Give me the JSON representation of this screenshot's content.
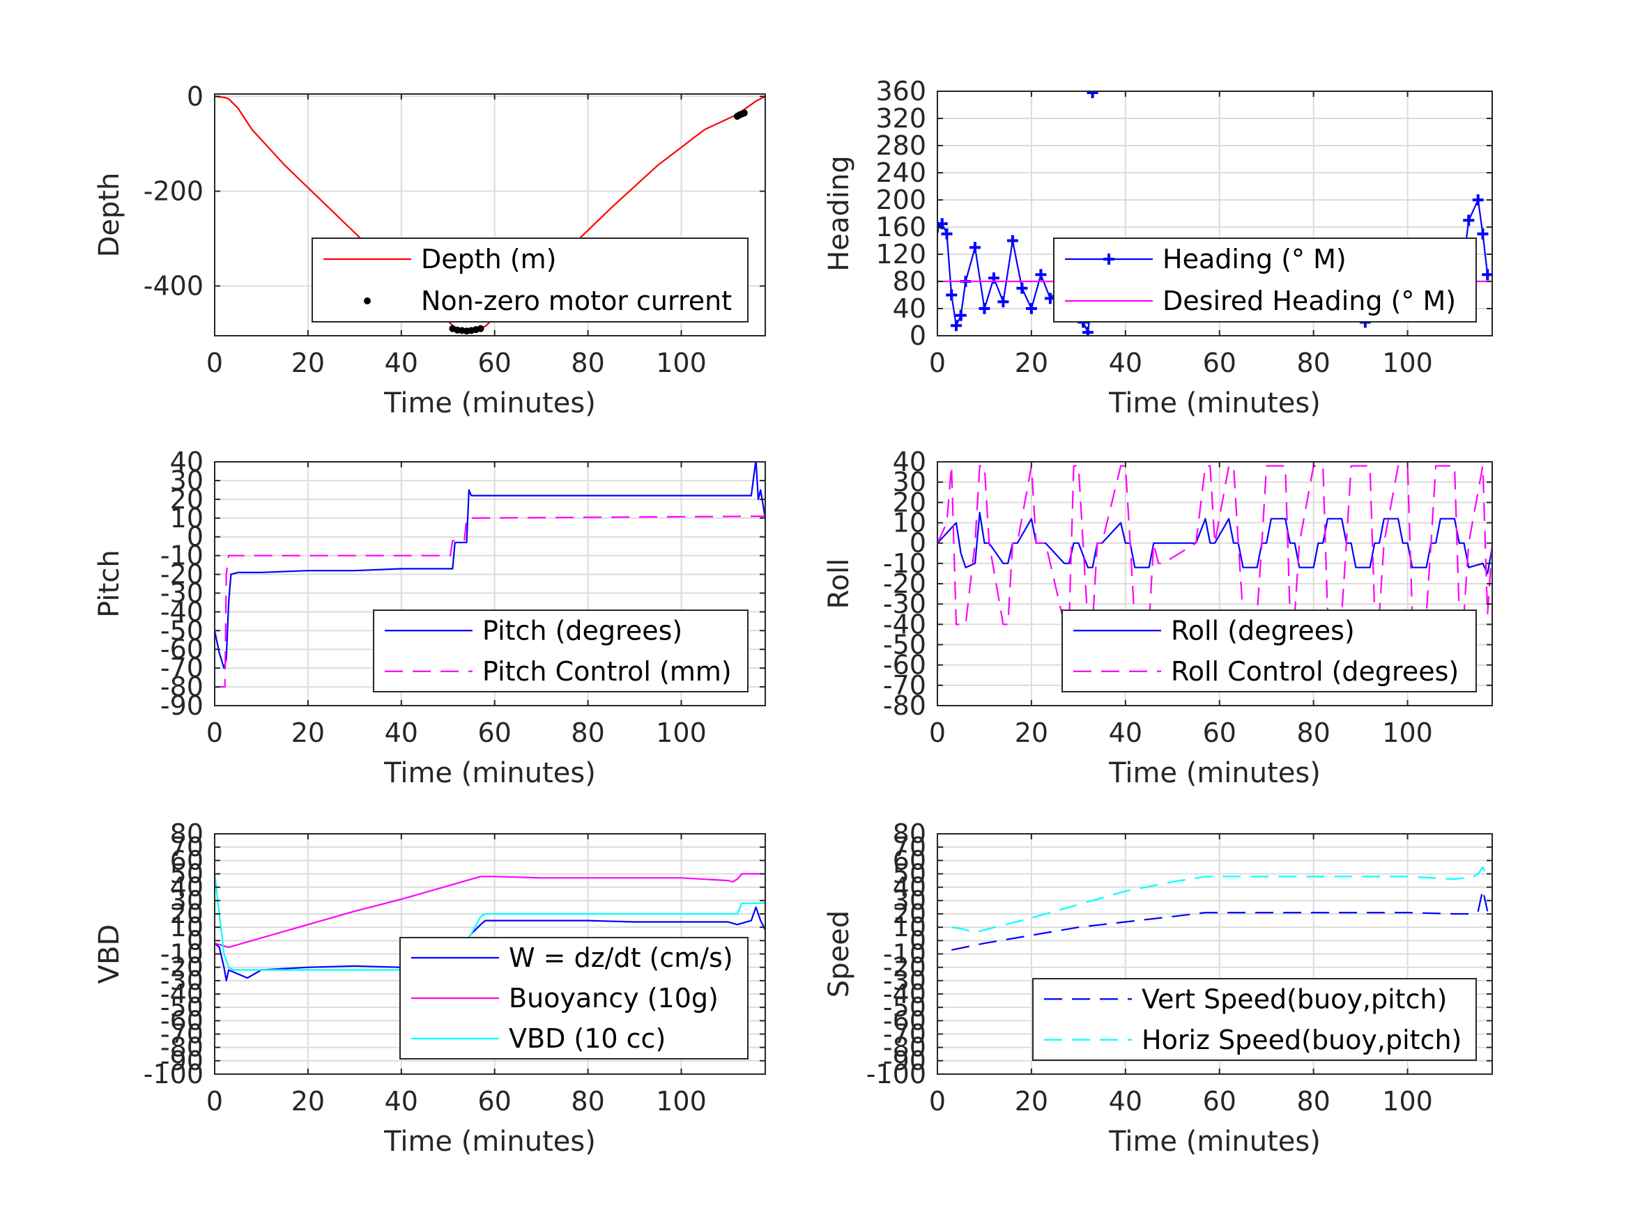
{
  "chart_data": [
    {
      "id": "depth",
      "type": "line",
      "xlabel": "Time (minutes)",
      "ylabel": "Depth",
      "xlim": [
        0,
        118
      ],
      "ylim": [
        -505,
        5
      ],
      "xticks": [
        0,
        20,
        40,
        60,
        80,
        100
      ],
      "yticks": [
        -400,
        -200,
        0
      ],
      "grid": true,
      "legend_placement": "lower-right",
      "series": [
        {
          "name": "Depth (m)",
          "color": "#ff0000",
          "style": "solid",
          "marker": "none",
          "x": [
            0,
            2,
            3,
            5,
            8,
            15,
            25,
            35,
            45,
            52,
            55,
            58,
            65,
            75,
            85,
            95,
            105,
            112,
            116,
            118
          ],
          "y": [
            0,
            -2,
            -5,
            -25,
            -70,
            -145,
            -240,
            -335,
            -430,
            -492,
            -496,
            -485,
            -420,
            -330,
            -235,
            -145,
            -70,
            -38,
            -10,
            0
          ]
        },
        {
          "name": "Non-zero motor current",
          "color": "#000000",
          "style": "none",
          "marker": "dot",
          "x": [
            51,
            52,
            53,
            54,
            55,
            56,
            57,
            112,
            112.5,
            113,
            113.5
          ],
          "y": [
            -490,
            -493,
            -494,
            -495,
            -494,
            -492,
            -490,
            -42,
            -39,
            -37,
            -35
          ]
        }
      ]
    },
    {
      "id": "heading",
      "type": "scatter",
      "xlabel": "Time (minutes)",
      "ylabel": "Heading",
      "xlim": [
        0,
        118
      ],
      "ylim": [
        0,
        360
      ],
      "xticks": [
        0,
        20,
        40,
        60,
        80,
        100
      ],
      "yticks": [
        0,
        40,
        80,
        120,
        160,
        200,
        240,
        280,
        320,
        360
      ],
      "grid": true,
      "legend_placement": "center-right",
      "series": [
        {
          "name": "Heading (° M)",
          "color": "#0000ff",
          "style": "solid",
          "marker": "plus",
          "x": [
            0,
            1,
            2,
            3,
            4,
            5,
            6,
            8,
            10,
            12,
            14,
            16,
            18,
            20,
            22,
            24,
            26,
            28,
            30,
            31,
            32,
            33,
            35,
            37,
            39,
            41,
            43,
            45,
            47,
            49,
            51,
            53,
            55,
            57,
            59,
            61,
            63,
            65,
            67,
            69,
            71,
            73,
            75,
            77,
            79,
            81,
            83,
            85,
            87,
            89,
            91,
            93,
            95,
            97,
            99,
            101,
            103,
            105,
            107,
            109,
            111,
            113,
            115,
            116,
            117
          ],
          "y": [
            160,
            165,
            150,
            60,
            15,
            30,
            80,
            130,
            40,
            85,
            50,
            140,
            70,
            40,
            90,
            55,
            70,
            105,
            40,
            20,
            5,
            60,
            100,
            40,
            30,
            100,
            90,
            40,
            30,
            85,
            105,
            75,
            115,
            70,
            110,
            60,
            100,
            90,
            40,
            60,
            120,
            30,
            100,
            75,
            40,
            110,
            75,
            40,
            110,
            60,
            20,
            125,
            40,
            130,
            30,
            120,
            50,
            135,
            40,
            115,
            60,
            170,
            200,
            150,
            90
          ]
        },
        {
          "name": "Desired Heading (° M)",
          "color": "#ff00ff",
          "style": "solid",
          "marker": "none",
          "x": [
            0,
            118
          ],
          "y": [
            80,
            80
          ]
        },
        {
          "name": "",
          "color": "#0000ff",
          "style": "none",
          "marker": "plus",
          "x": [
            33
          ],
          "y": [
            358
          ]
        }
      ]
    },
    {
      "id": "pitch",
      "type": "line",
      "xlabel": "Time (minutes)",
      "ylabel": "Pitch",
      "xlim": [
        0,
        118
      ],
      "ylim": [
        -90,
        40
      ],
      "xticks": [
        0,
        20,
        40,
        60,
        80,
        100
      ],
      "yticks": [
        -90,
        -80,
        -70,
        -60,
        -50,
        -40,
        -30,
        -20,
        -10,
        0,
        10,
        20,
        30,
        40
      ],
      "grid": true,
      "legend_placement": "lower-right",
      "series": [
        {
          "name": "Pitch (degrees)",
          "color": "#0000ff",
          "style": "solid",
          "marker": "none",
          "x": [
            0,
            1,
            2,
            2.5,
            3,
            3.5,
            5,
            10,
            20,
            30,
            40,
            50,
            51,
            51.5,
            52,
            54,
            54.5,
            55,
            60,
            70,
            80,
            90,
            100,
            110,
            115,
            116,
            116.5,
            117,
            118
          ],
          "y": [
            -50,
            -62,
            -70,
            -65,
            -35,
            -20,
            -19,
            -19,
            -18,
            -18,
            -17,
            -17,
            -17,
            -3,
            -3,
            -3,
            25,
            22,
            22,
            22,
            22,
            22,
            22,
            22,
            22,
            41,
            20,
            25,
            10
          ]
        },
        {
          "name": "Pitch Control (mm)",
          "color": "#ff00ff",
          "style": "dashed",
          "marker": "none",
          "x": [
            0,
            2.2,
            2.5,
            3,
            50.5,
            51,
            53.5,
            54,
            118
          ],
          "y": [
            -80,
            -80,
            -20,
            -10,
            -10,
            -2,
            -2,
            10,
            11
          ]
        }
      ]
    },
    {
      "id": "roll",
      "type": "line",
      "xlabel": "Time (minutes)",
      "ylabel": "Roll",
      "xlim": [
        0,
        118
      ],
      "ylim": [
        -80,
        40
      ],
      "xticks": [
        0,
        20,
        40,
        60,
        80,
        100
      ],
      "yticks": [
        -80,
        -70,
        -60,
        -50,
        -40,
        -30,
        -20,
        -10,
        0,
        10,
        20,
        30,
        40
      ],
      "grid": true,
      "legend_placement": "lower-right",
      "series": [
        {
          "name": "Roll (degrees)",
          "color": "#0000ff",
          "style": "solid",
          "marker": "none",
          "x": [
            0,
            2,
            4,
            5,
            6,
            8,
            9,
            10,
            11,
            14,
            15,
            16,
            17,
            20,
            21,
            22,
            23,
            27,
            28,
            29,
            30,
            32,
            33,
            34,
            35,
            39,
            40,
            41,
            42,
            45,
            46,
            47,
            48,
            55,
            57,
            58,
            59,
            62,
            63,
            64,
            65,
            68,
            69,
            70,
            71,
            74,
            75,
            76,
            77,
            80,
            81,
            82,
            83,
            86,
            87,
            88,
            89,
            92,
            93,
            94,
            95,
            98,
            99,
            100,
            101,
            104,
            105,
            106,
            107,
            110,
            111,
            112,
            113,
            116,
            117,
            118
          ],
          "y": [
            0,
            5,
            10,
            -5,
            -12,
            -10,
            15,
            0,
            0,
            -10,
            -10,
            0,
            0,
            12,
            0,
            0,
            0,
            -10,
            -10,
            0,
            0,
            -12,
            -12,
            0,
            0,
            10,
            0,
            0,
            -12,
            -12,
            0,
            0,
            0,
            0,
            12,
            0,
            0,
            12,
            0,
            0,
            -12,
            -12,
            0,
            0,
            12,
            12,
            0,
            0,
            -12,
            -12,
            0,
            0,
            12,
            12,
            0,
            0,
            -12,
            -12,
            0,
            0,
            12,
            12,
            0,
            0,
            -12,
            -12,
            0,
            0,
            12,
            12,
            0,
            0,
            -12,
            -10,
            -15,
            -2
          ]
        },
        {
          "name": "Roll Control (degrees)",
          "color": "#ff00ff",
          "style": "dashed",
          "marker": "none",
          "x": [
            0,
            2,
            3,
            4,
            4.5,
            5,
            6,
            8,
            9,
            10,
            11,
            14,
            15,
            16,
            17,
            20,
            21,
            22,
            23,
            27,
            28,
            29,
            30,
            32,
            33,
            34,
            35,
            39,
            40,
            41,
            42,
            45,
            46,
            47,
            48,
            55,
            57,
            58,
            59,
            62,
            63,
            64,
            65,
            68,
            69,
            70,
            71,
            74,
            75,
            76,
            77,
            80,
            81,
            82,
            83,
            86,
            87,
            88,
            89,
            92,
            93,
            94,
            95,
            98,
            99,
            100,
            101,
            104,
            105,
            106,
            107,
            110,
            111,
            112,
            113,
            116,
            117,
            118
          ],
          "y": [
            0,
            10,
            38,
            -40,
            -40,
            -40,
            -40,
            0,
            38,
            38,
            0,
            -40,
            -40,
            0,
            0,
            38,
            0,
            0,
            0,
            -40,
            -40,
            38,
            38,
            -40,
            -40,
            0,
            0,
            38,
            38,
            0,
            -40,
            -40,
            0,
            -10,
            -10,
            0,
            38,
            38,
            0,
            38,
            38,
            0,
            -35,
            -35,
            0,
            38,
            38,
            38,
            -35,
            -35,
            0,
            38,
            38,
            38,
            -35,
            -35,
            0,
            38,
            38,
            38,
            -35,
            -35,
            0,
            38,
            38,
            38,
            -35,
            -35,
            0,
            38,
            38,
            38,
            -35,
            -35,
            0,
            38,
            -35,
            0
          ]
        }
      ]
    },
    {
      "id": "vbd",
      "type": "line",
      "xlabel": "Time (minutes)",
      "ylabel": "VBD",
      "xlim": [
        0,
        118
      ],
      "ylim": [
        -100,
        80
      ],
      "xticks": [
        0,
        20,
        40,
        60,
        80,
        100
      ],
      "yticks": [
        -100,
        -90,
        -80,
        -70,
        -60,
        -50,
        -40,
        -30,
        -20,
        -10,
        0,
        10,
        20,
        30,
        40,
        50,
        60,
        70,
        80
      ],
      "grid": true,
      "legend_placement": "lower-right",
      "series": [
        {
          "name": "W = dz/dt (cm/s)",
          "color": "#0000ff",
          "style": "solid",
          "marker": "none",
          "x": [
            0,
            1,
            2,
            2.5,
            3,
            5,
            7,
            10,
            20,
            30,
            40,
            50,
            51,
            53,
            55,
            57,
            58,
            60,
            70,
            80,
            90,
            100,
            110,
            112,
            115,
            116,
            117,
            118
          ],
          "y": [
            -2,
            -5,
            -20,
            -30,
            -22,
            -25,
            -28,
            -22,
            -20,
            -19,
            -20,
            -20,
            -15,
            -5,
            5,
            12,
            15,
            15,
            15,
            15,
            14,
            14,
            14,
            12,
            15,
            25,
            15,
            8
          ]
        },
        {
          "name": "Buoyancy (10g)",
          "color": "#ff00ff",
          "style": "solid",
          "marker": "none",
          "x": [
            0,
            3,
            10,
            20,
            30,
            40,
            50,
            57,
            60,
            70,
            80,
            90,
            100,
            110,
            111,
            112,
            113,
            118
          ],
          "y": [
            -2,
            -5,
            2,
            12,
            22,
            31,
            41,
            48,
            48,
            47,
            47,
            47,
            47,
            45,
            44,
            46,
            50,
            50
          ]
        },
        {
          "name": "VBD (10 cc)",
          "color": "#00ffff",
          "style": "solid",
          "marker": "none",
          "x": [
            0,
            1,
            2,
            3,
            4,
            10,
            20,
            30,
            40,
            50,
            51,
            53,
            55,
            57,
            58,
            60,
            70,
            80,
            90,
            100,
            110,
            112,
            113,
            118
          ],
          "y": [
            50,
            20,
            -10,
            -20,
            -22,
            -22,
            -22,
            -22,
            -22,
            -22,
            -15,
            -5,
            5,
            18,
            20,
            20,
            20,
            20,
            20,
            20,
            20,
            20,
            28,
            28
          ]
        }
      ]
    },
    {
      "id": "speed",
      "type": "line",
      "xlabel": "Time (minutes)",
      "ylabel": "Speed",
      "xlim": [
        0,
        118
      ],
      "ylim": [
        -100,
        80
      ],
      "xticks": [
        0,
        20,
        40,
        60,
        80,
        100
      ],
      "yticks": [
        -100,
        -90,
        -80,
        -70,
        -60,
        -50,
        -40,
        -30,
        -20,
        -10,
        0,
        10,
        20,
        30,
        40,
        50,
        60,
        70,
        80
      ],
      "grid": true,
      "legend_placement": "lower-right",
      "series": [
        {
          "name": "Vert Speed(buoy,pitch)",
          "color": "#0000ff",
          "style": "dashed",
          "marker": "none",
          "x": [
            3,
            10,
            20,
            30,
            40,
            50,
            57,
            60,
            70,
            80,
            90,
            100,
            110,
            114,
            115,
            116,
            117
          ],
          "y": [
            -7,
            -2,
            4,
            10,
            14,
            18,
            21,
            21,
            21,
            21,
            21,
            21,
            20,
            20,
            22,
            38,
            22
          ]
        },
        {
          "name": "Horiz Speed(buoy,pitch)",
          "color": "#00ffff",
          "style": "dashed",
          "marker": "none",
          "x": [
            3,
            5,
            8,
            10,
            20,
            30,
            40,
            50,
            57,
            60,
            70,
            80,
            90,
            100,
            110,
            114,
            115,
            116,
            117
          ],
          "y": [
            10,
            9,
            6,
            8,
            17,
            27,
            37,
            44,
            48,
            48,
            48,
            48,
            48,
            48,
            46,
            48,
            50,
            55,
            48
          ]
        }
      ]
    }
  ]
}
